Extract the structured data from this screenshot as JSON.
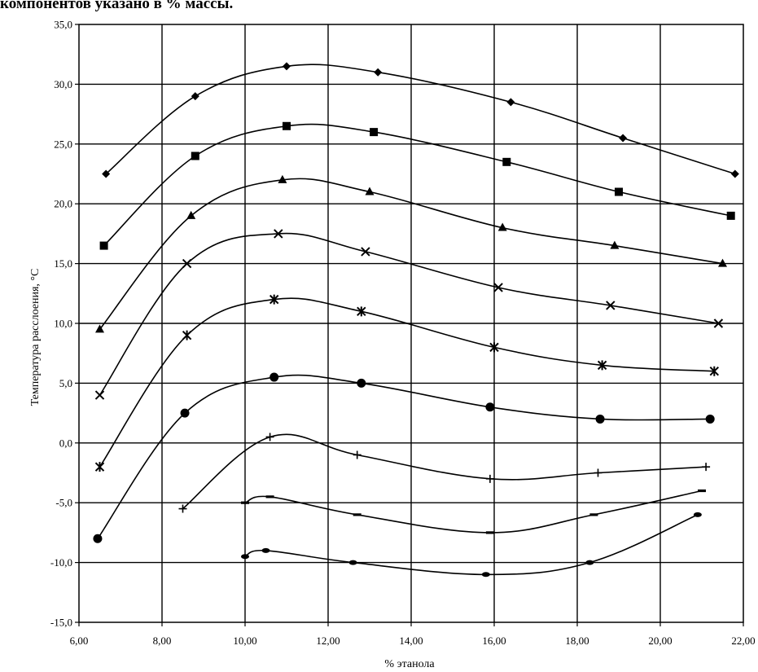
{
  "header": {
    "text": "компонентов указано в % массы."
  },
  "chart_data": {
    "type": "line",
    "title": "",
    "xlabel": "% этанола",
    "ylabel": "Температура расслоения, °С",
    "xlim": [
      6,
      22
    ],
    "ylim": [
      -15,
      35
    ],
    "grid": true,
    "x_ticks": [
      "6,00",
      "8,00",
      "10,00",
      "12,00",
      "14,00",
      "16,00",
      "18,00",
      "20,00",
      "22,00"
    ],
    "y_ticks": [
      "35,0",
      "30,0",
      "25,0",
      "20,0",
      "15,0",
      "10,0",
      "5,0",
      "0,0",
      "-5,0",
      "-10,0",
      "-15,0"
    ],
    "colors": {
      "line": "#000000",
      "grid": "#000000",
      "background": "#ffffff"
    },
    "series": [
      {
        "marker": "diamond",
        "points": [
          [
            6.65,
            22.5
          ],
          [
            8.8,
            29
          ],
          [
            11.0,
            31.5
          ],
          [
            13.2,
            31
          ],
          [
            16.4,
            28.5
          ],
          [
            19.1,
            25.5
          ],
          [
            21.8,
            22.5
          ]
        ]
      },
      {
        "marker": "square",
        "points": [
          [
            6.6,
            16.5
          ],
          [
            8.8,
            24
          ],
          [
            11.0,
            26.5
          ],
          [
            13.1,
            26
          ],
          [
            16.3,
            23.5
          ],
          [
            19.0,
            21
          ],
          [
            21.7,
            19
          ]
        ]
      },
      {
        "marker": "triangle",
        "points": [
          [
            6.5,
            9.5
          ],
          [
            8.7,
            19
          ],
          [
            10.9,
            22
          ],
          [
            13.0,
            21
          ],
          [
            16.2,
            18
          ],
          [
            18.9,
            16.5
          ],
          [
            21.5,
            15
          ]
        ]
      },
      {
        "marker": "x",
        "points": [
          [
            6.5,
            4
          ],
          [
            8.6,
            15
          ],
          [
            10.8,
            17.5
          ],
          [
            12.9,
            16
          ],
          [
            16.1,
            13
          ],
          [
            18.8,
            11.5
          ],
          [
            21.4,
            10
          ]
        ]
      },
      {
        "marker": "star",
        "points": [
          [
            6.5,
            -2
          ],
          [
            8.6,
            9
          ],
          [
            10.7,
            12
          ],
          [
            12.8,
            11
          ],
          [
            16.0,
            8
          ],
          [
            18.6,
            6.5
          ],
          [
            21.3,
            6
          ]
        ]
      },
      {
        "marker": "circle",
        "points": [
          [
            6.45,
            -8
          ],
          [
            8.55,
            2.5
          ],
          [
            10.7,
            5.5
          ],
          [
            12.8,
            5
          ],
          [
            15.9,
            3
          ],
          [
            18.55,
            2
          ],
          [
            21.2,
            2
          ]
        ]
      },
      {
        "marker": "plus",
        "points": [
          [
            8.5,
            -5.5
          ],
          [
            10.6,
            0.5
          ],
          [
            12.7,
            -1
          ],
          [
            15.9,
            -3
          ],
          [
            18.5,
            -2.5
          ],
          [
            21.1,
            -2
          ]
        ]
      },
      {
        "marker": "dash",
        "points": [
          [
            10.0,
            -5
          ],
          [
            10.6,
            -4.5
          ],
          [
            12.7,
            -6
          ],
          [
            15.9,
            -7.5
          ],
          [
            18.4,
            -6
          ],
          [
            21.0,
            -4
          ]
        ]
      },
      {
        "marker": "dot",
        "points": [
          [
            10.0,
            -9.5
          ],
          [
            10.5,
            -9
          ],
          [
            12.6,
            -10
          ],
          [
            15.8,
            -11
          ],
          [
            18.3,
            -10
          ],
          [
            20.9,
            -6
          ]
        ]
      }
    ]
  }
}
